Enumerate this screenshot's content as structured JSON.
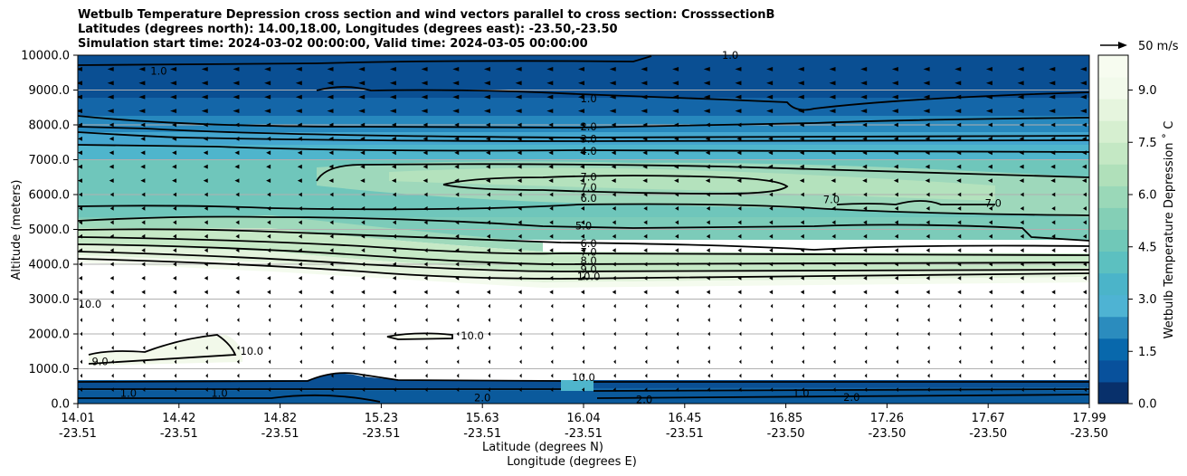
{
  "chart_data": {
    "type": "contour_cross_section",
    "title_lines": [
      "Wetbulb Temperature Depression cross section and wind vectors parallel to cross section: CrosssectionB",
      "Latitudes (degrees north): 14.00,18.00, Longitudes (degrees east): -23.50,-23.50",
      "Simulation start time: 2024-03-02 00:00:00, Valid time: 2024-03-05 00:00:00"
    ],
    "xlabel_lat": "Latitude (degrees N)",
    "xlabel_lon": "Longitude (degrees E)",
    "ylabel": "Altitude (meters)",
    "colorbar_label": "Wetbulb Temperature Depression ˚ C",
    "quiver_key_label": "50 m/s",
    "ylim": [
      0,
      10000
    ],
    "y_ticks": [
      "0.0",
      "1000.0",
      "2000.0",
      "3000.0",
      "4000.0",
      "5000.0",
      "6000.0",
      "7000.0",
      "8000.0",
      "9000.0",
      "10000.0"
    ],
    "x_ticks": [
      {
        "lat": "14.01",
        "lon": "-23.51",
        "pos": 0.0
      },
      {
        "lat": "14.42",
        "lon": "-23.51",
        "pos": 0.1
      },
      {
        "lat": "14.82",
        "lon": "-23.51",
        "pos": 0.2
      },
      {
        "lat": "15.23",
        "lon": "-23.51",
        "pos": 0.3
      },
      {
        "lat": "15.63",
        "lon": "-23.51",
        "pos": 0.4
      },
      {
        "lat": "16.04",
        "lon": "-23.51",
        "pos": 0.5
      },
      {
        "lat": "16.45",
        "lon": "-23.51",
        "pos": 0.6
      },
      {
        "lat": "16.85",
        "lon": "-23.50",
        "pos": 0.7
      },
      {
        "lat": "17.26",
        "lon": "-23.50",
        "pos": 0.8
      },
      {
        "lat": "17.67",
        "lon": "-23.50",
        "pos": 0.9
      },
      {
        "lat": "17.99",
        "lon": "-23.50",
        "pos": 1.0
      }
    ],
    "colorbar_range": [
      0,
      10
    ],
    "colorbar_ticks": [
      "0.0",
      "1.5",
      "3.0",
      "4.5",
      "6.0",
      "7.5",
      "9.0"
    ],
    "colormap": [
      "#08306b",
      "#08519c",
      "#0868ac",
      "#2b8cbe",
      "#4eb3d3",
      "#4bb4c9",
      "#5cc0c0",
      "#70c8b8",
      "#84cfb6",
      "#9ad8b8",
      "#b0e0ba",
      "#c4e8c4",
      "#d6efd0",
      "#e6f5de",
      "#f2faeb",
      "#f7fcf0"
    ],
    "contour_levels": [
      "1.0",
      "2.0",
      "3.0",
      "4.0",
      "5.0",
      "6.0",
      "7.0",
      "8.0",
      "9.0",
      "10.0"
    ],
    "contour_labels": [
      {
        "text": "1.0",
        "x": 0.505,
        "y": 8700
      },
      {
        "text": "2.0",
        "x": 0.505,
        "y": 7900
      },
      {
        "text": "3.0",
        "x": 0.505,
        "y": 7550
      },
      {
        "text": "4.0",
        "x": 0.505,
        "y": 7200
      },
      {
        "text": "7.0",
        "x": 0.505,
        "y": 6450
      },
      {
        "text": "7.0",
        "x": 0.505,
        "y": 6150
      },
      {
        "text": "6.0",
        "x": 0.505,
        "y": 5850
      },
      {
        "text": "5.0",
        "x": 0.5,
        "y": 5050
      },
      {
        "text": "6.0",
        "x": 0.505,
        "y": 4550
      },
      {
        "text": "7.0",
        "x": 0.505,
        "y": 4300
      },
      {
        "text": "8.0",
        "x": 0.505,
        "y": 4050
      },
      {
        "text": "9.0",
        "x": 0.505,
        "y": 3800
      },
      {
        "text": "10.0",
        "x": 0.505,
        "y": 3600
      },
      {
        "text": "1.0",
        "x": 0.08,
        "y": 9500
      },
      {
        "text": "1.0",
        "x": 0.645,
        "y": 9950
      },
      {
        "text": "10.0",
        "x": 0.012,
        "y": 2800
      },
      {
        "text": "10.0",
        "x": 0.172,
        "y": 1450
      },
      {
        "text": "9.0",
        "x": 0.022,
        "y": 1150
      },
      {
        "text": "10.0",
        "x": 0.39,
        "y": 1900
      },
      {
        "text": "7.0",
        "x": 0.745,
        "y": 5800
      },
      {
        "text": "7.0",
        "x": 0.905,
        "y": 5700
      },
      {
        "text": "10.0",
        "x": 0.5,
        "y": 700
      },
      {
        "text": "1.0",
        "x": 0.05,
        "y": 250
      },
      {
        "text": "1.0",
        "x": 0.14,
        "y": 250
      },
      {
        "text": "2.0",
        "x": 0.4,
        "y": 120
      },
      {
        "text": "2.0",
        "x": 0.56,
        "y": 70
      },
      {
        "text": "1.0",
        "x": 0.715,
        "y": 250
      },
      {
        "text": "2.0",
        "x": 0.765,
        "y": 130
      }
    ]
  }
}
